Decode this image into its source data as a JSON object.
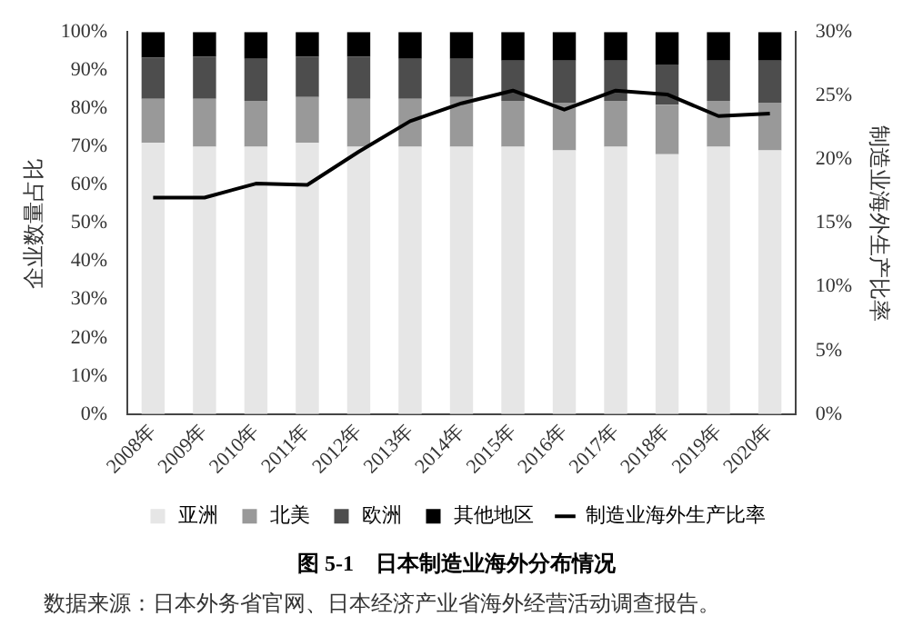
{
  "chart_data": {
    "type": "bar",
    "title": "图 5-1　日本制造业海外分布情况",
    "categories": [
      "2008年",
      "2009年",
      "2010年",
      "2011年",
      "2012年",
      "2013年",
      "2014年",
      "2015年",
      "2016年",
      "2017年",
      "2018年",
      "2019年",
      "2020年"
    ],
    "stacked": true,
    "series": [
      {
        "name": "亚洲",
        "color": "#e6e6e6",
        "values": [
          71,
          70,
          70,
          71,
          70,
          70,
          70,
          70,
          69,
          70,
          68,
          70,
          69
        ]
      },
      {
        "name": "北美",
        "color": "#999999",
        "values": [
          11.5,
          12.5,
          12,
          12,
          12.5,
          12.5,
          13,
          12,
          12.5,
          12,
          13,
          12,
          12.5
        ]
      },
      {
        "name": "欧洲",
        "color": "#4d4d4d",
        "values": [
          10.8,
          11,
          11,
          10.5,
          11,
          10.5,
          10,
          10.5,
          11,
          10.5,
          10.5,
          10.5,
          11
        ]
      },
      {
        "name": "其他地区",
        "color": "#000000",
        "values": [
          6.7,
          6.5,
          7,
          6.5,
          6.5,
          7,
          7,
          7.5,
          7.5,
          7.5,
          8.5,
          7.5,
          7.5
        ]
      },
      {
        "name": "制造业海外生产比率",
        "type": "line",
        "axis": "y2",
        "color": "#000000",
        "values": [
          17.0,
          17.0,
          18.1,
          18.0,
          20.6,
          23.0,
          24.4,
          25.4,
          23.9,
          25.4,
          25.1,
          23.4,
          23.6
        ]
      }
    ],
    "ylabel": "企业数量占比",
    "y2label": "制造业海外生产比率",
    "ylim": [
      0,
      100
    ],
    "yticks": [
      {
        "value": 0,
        "label": "0%"
      },
      {
        "value": 10,
        "label": "10%"
      },
      {
        "value": 20,
        "label": "20%"
      },
      {
        "value": 30,
        "label": "30%"
      },
      {
        "value": 40,
        "label": "40%"
      },
      {
        "value": 50,
        "label": "50%"
      },
      {
        "value": 60,
        "label": "60%"
      },
      {
        "value": 70,
        "label": "70%"
      },
      {
        "value": 80,
        "label": "80%"
      },
      {
        "value": 90,
        "label": "90%"
      },
      {
        "value": 100,
        "label": "100%"
      }
    ],
    "y2lim": [
      0,
      30
    ],
    "y2ticks": [
      {
        "value": 0,
        "label": "0%"
      },
      {
        "value": 5,
        "label": "5%"
      },
      {
        "value": 10,
        "label": "10%"
      },
      {
        "value": 15,
        "label": "15%"
      },
      {
        "value": 20,
        "label": "20%"
      },
      {
        "value": 25,
        "label": "25%"
      },
      {
        "value": 30,
        "label": "30%"
      }
    ],
    "legend": "bottom",
    "grid": false,
    "marker": "none",
    "line_style": "solid",
    "annotations": [
      "数据来源：日本外务省官网、日本经济产业省海外经营活动调查报告。"
    ]
  }
}
